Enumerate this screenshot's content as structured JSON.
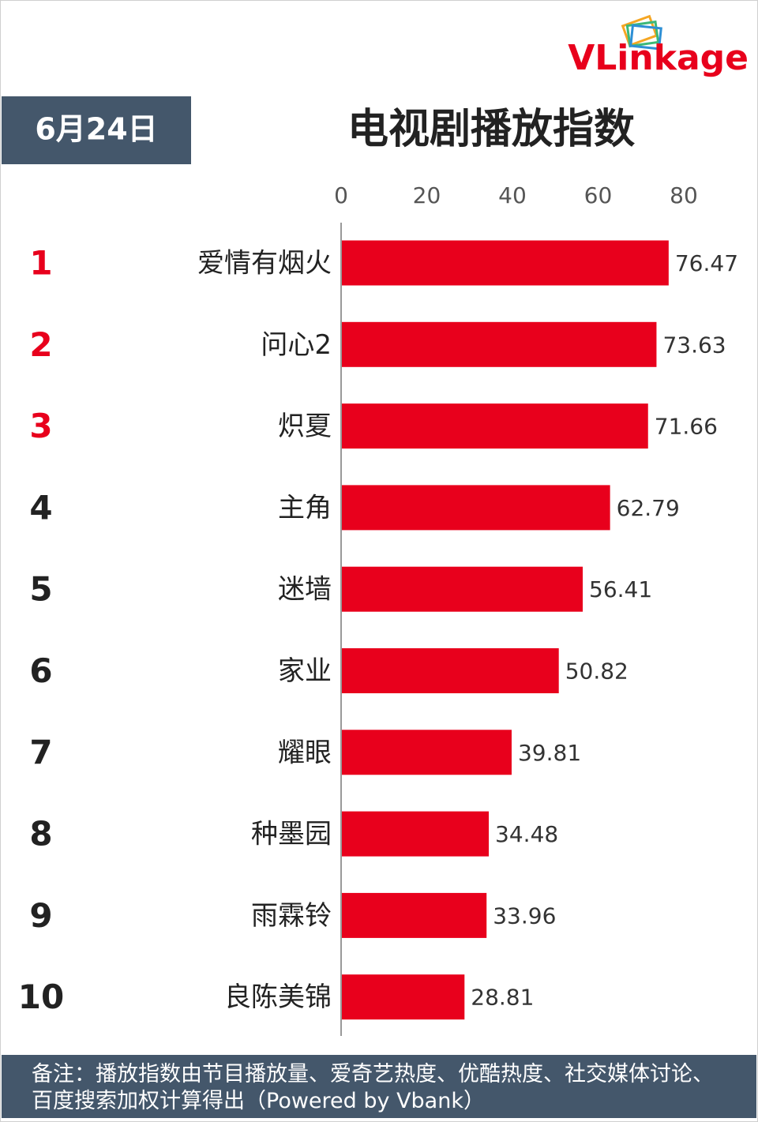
{
  "chart_data": {
    "type": "bar",
    "orientation": "horizontal",
    "logo": "VLinkage",
    "date": "6月24日",
    "title": "电视剧播放指数",
    "ranks": [
      1,
      2,
      3,
      4,
      5,
      6,
      7,
      8,
      9,
      10
    ],
    "rank_colors": [
      "#e8001c",
      "#e8001c",
      "#e8001c",
      "#222222",
      "#222222",
      "#222222",
      "#222222",
      "#222222",
      "#222222",
      "#222222"
    ],
    "categories": [
      "爱情有烟火",
      "问心2",
      "炽夏",
      "主角",
      "迷墙",
      "家业",
      "耀眼",
      "种墨园",
      "雨霖铃",
      "良陈美锦"
    ],
    "values": [
      76.47,
      73.63,
      71.66,
      62.79,
      56.41,
      50.82,
      39.81,
      34.48,
      33.96,
      28.81
    ],
    "color": "#e8001c",
    "xlim": [
      0,
      80
    ],
    "xticks": [
      0,
      20,
      40,
      60,
      80
    ],
    "note": "备注：播放指数由节目播放量、爱奇艺热度、优酷热度、社交媒体讨论、百度搜索加权计算得出（Powered by Vbank）"
  }
}
